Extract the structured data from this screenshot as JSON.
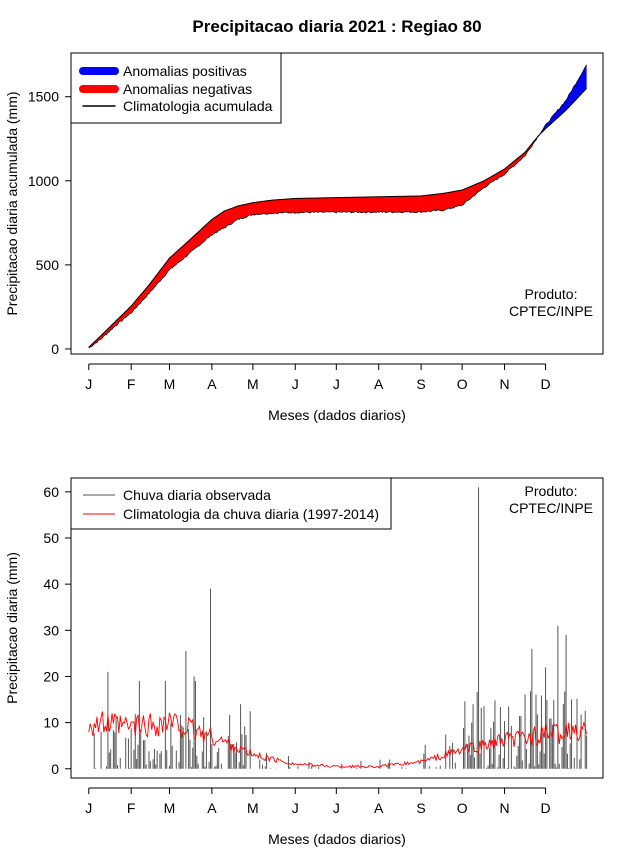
{
  "title": "Precipitacao diaria 2021 : Regiao 80",
  "chart_data": [
    {
      "type": "area",
      "ylabel": "Precipitacao diaria acumulada (mm)",
      "xlabel": "Meses (dados diarios)",
      "ylim": [
        -30,
        1760
      ],
      "xlim": [
        -12,
        377
      ],
      "yticks": [
        0,
        500,
        1000,
        1500
      ],
      "month_labels": [
        "J",
        "F",
        "M",
        "A",
        "M",
        "J",
        "J",
        "A",
        "S",
        "O",
        "N",
        "D"
      ],
      "month_days": [
        1,
        32,
        60,
        91,
        121,
        152,
        182,
        213,
        244,
        274,
        305,
        335
      ],
      "legend": [
        "Anomalias positivas",
        "Anomalias negativas",
        "Climatologia acumulada"
      ],
      "product_label": [
        "Produto:",
        "CPTEC/INPE"
      ],
      "colors": {
        "positive": "#0000ff",
        "negative": "#ff0000",
        "climatology": "#000000"
      },
      "climatology": {
        "days": [
          1,
          10,
          20,
          32,
          45,
          60,
          75,
          91,
          100,
          110,
          121,
          135,
          152,
          182,
          213,
          244,
          260,
          274,
          290,
          305,
          320,
          330,
          335,
          350,
          365
        ],
        "values": [
          10,
          80,
          160,
          255,
          380,
          540,
          650,
          770,
          820,
          850,
          870,
          885,
          895,
          900,
          905,
          910,
          925,
          945,
          1000,
          1070,
          1170,
          1270,
          1310,
          1420,
          1550
        ]
      },
      "observed": {
        "days": [
          1,
          10,
          20,
          32,
          45,
          60,
          75,
          91,
          100,
          110,
          121,
          135,
          152,
          182,
          213,
          244,
          260,
          274,
          290,
          305,
          320,
          330,
          335,
          350,
          365
        ],
        "values": [
          5,
          60,
          135,
          215,
          330,
          470,
          570,
          680,
          720,
          770,
          800,
          808,
          812,
          813,
          814,
          815,
          825,
          855,
          960,
          1040,
          1150,
          1270,
          1330,
          1480,
          1690
        ]
      }
    },
    {
      "type": "bar",
      "ylabel": "Precipitacao diaria (mm)",
      "xlabel": "Meses (dados diarios)",
      "ylim": [
        -2,
        63
      ],
      "xlim": [
        -12,
        377
      ],
      "yticks": [
        0,
        10,
        20,
        30,
        40,
        50,
        60
      ],
      "month_labels": [
        "J",
        "F",
        "M",
        "A",
        "M",
        "J",
        "J",
        "A",
        "S",
        "O",
        "N",
        "D"
      ],
      "month_days": [
        1,
        32,
        60,
        91,
        121,
        152,
        182,
        213,
        244,
        274,
        305,
        335
      ],
      "legend": [
        "Chuva diaria observada",
        "Climatologia da chuva diaria (1997-2014)"
      ],
      "product_label": [
        "Produto:",
        "CPTEC/INPE"
      ],
      "colors": {
        "observed": "#555555",
        "climatology": "#ff0000"
      },
      "peaks": [
        {
          "day": 15,
          "value": 21
        },
        {
          "day": 38,
          "value": 19
        },
        {
          "day": 57,
          "value": 19
        },
        {
          "day": 72,
          "value": 25.5
        },
        {
          "day": 79,
          "value": 19
        },
        {
          "day": 79,
          "value": 17
        },
        {
          "day": 78,
          "value": 20
        },
        {
          "day": 90,
          "value": 39
        },
        {
          "day": 112,
          "value": 14
        },
        {
          "day": 286,
          "value": 61
        },
        {
          "day": 325,
          "value": 26
        },
        {
          "day": 335,
          "value": 22
        },
        {
          "day": 344,
          "value": 31
        },
        {
          "day": 350,
          "value": 29
        }
      ],
      "climatology_days": [
        1,
        30,
        60,
        91,
        121,
        152,
        182,
        213,
        244,
        274,
        305,
        335,
        365
      ],
      "climatology_values": [
        10,
        9,
        10,
        7,
        3,
        1,
        0.5,
        0.5,
        1.5,
        4,
        6,
        7.5,
        8
      ]
    }
  ]
}
